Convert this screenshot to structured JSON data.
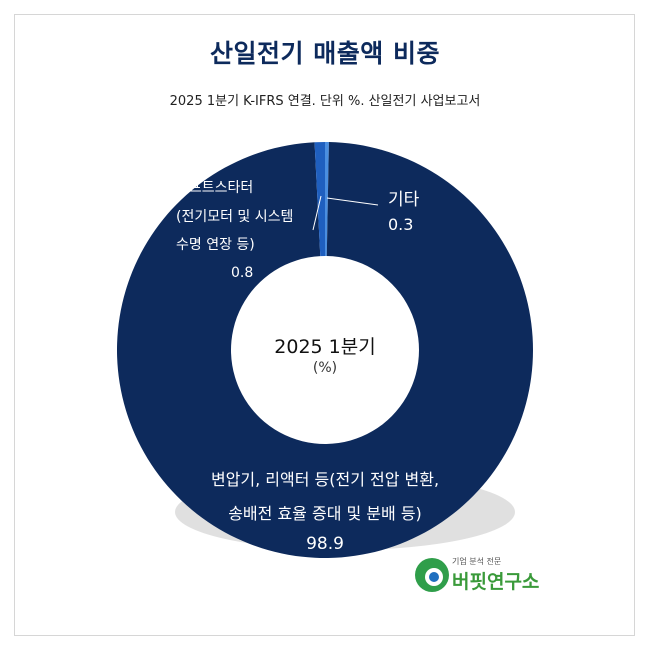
{
  "title": "산일전기 매출액 비중",
  "subtitle": "2025 1분기 K-IFRS 연결. 단위 %. 산일전기 사업보고서",
  "center": {
    "title": "2025 1분기",
    "unit": "(%)"
  },
  "colors": {
    "main": "#0d2a5c",
    "software": "#1f5fbf",
    "etc": "#4a8ee0",
    "shadow": "#d8d8d8"
  },
  "chart_data": {
    "type": "pie",
    "title": "산일전기 매출액 비중",
    "subtitle": "2025 1분기 K-IFRS 연결. 단위 %. 산일전기 사업보고서",
    "donut": true,
    "categories": [
      "기타",
      "변압기, 리액터 등(전기 전압 변환, 송배전 효율 증대 및 분배 등)",
      "소프트스타터 (전기모터 및 시스템 수명 연장 등)"
    ],
    "values": [
      0.3,
      98.9,
      0.8
    ],
    "labels": {
      "etc": {
        "name": "기타",
        "value": "0.3"
      },
      "main": {
        "line1": "변압기, 리액터 등(전기 전압 변환,",
        "line2": "송배전 효율 증대 및 분배 등)",
        "value": "98.9"
      },
      "software": {
        "line1": "소프트스타터",
        "line2": "(전기모터 및 시스템",
        "line3": "수명 연장 등)",
        "value": "0.8"
      }
    }
  },
  "logo": {
    "tagline": "기업 분석 전문",
    "name": "버핏연구소"
  }
}
